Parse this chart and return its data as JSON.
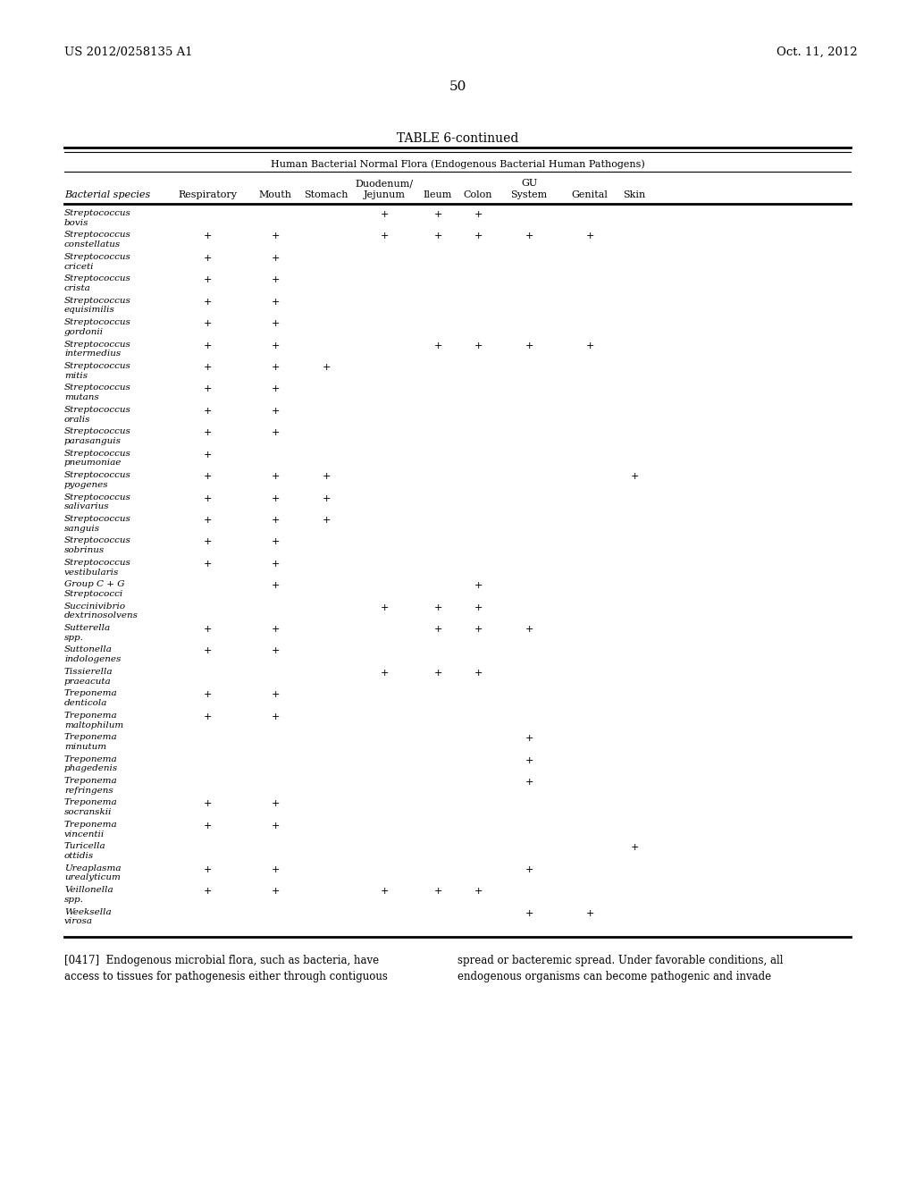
{
  "header_left": "US 2012/0258135 A1",
  "header_right": "Oct. 11, 2012",
  "page_number": "50",
  "table_title": "TABLE 6-continued",
  "subtitle": "Human Bacterial Normal Flora (Endogenous Bacterial Human Pathogens)",
  "col_headers_row2": [
    "Bacterial species",
    "Respiratory",
    "Mouth",
    "Stomach",
    "Jejunum",
    "Ileum",
    "Colon",
    "System",
    "Genital",
    "Skin"
  ],
  "rows": [
    [
      "Streptococcus\nbovis",
      "",
      "",
      "",
      "+",
      "+",
      "+",
      "",
      "",
      ""
    ],
    [
      "Streptococcus\nconstellatus",
      "+",
      "+",
      "",
      "+",
      "+",
      "+",
      "+",
      "+",
      ""
    ],
    [
      "Streptococcus\ncriceti",
      "+",
      "+",
      "",
      "",
      "",
      "",
      "",
      "",
      ""
    ],
    [
      "Streptococcus\ncrista",
      "+",
      "+",
      "",
      "",
      "",
      "",
      "",
      "",
      ""
    ],
    [
      "Streptococcus\nequisimilis",
      "+",
      "+",
      "",
      "",
      "",
      "",
      "",
      "",
      ""
    ],
    [
      "Streptococcus\ngordonii",
      "+",
      "+",
      "",
      "",
      "",
      "",
      "",
      "",
      ""
    ],
    [
      "Streptococcus\nintermedius",
      "+",
      "+",
      "",
      "",
      "+",
      "+",
      "+",
      "+",
      ""
    ],
    [
      "Streptococcus\nmitis",
      "+",
      "+",
      "+",
      "",
      "",
      "",
      "",
      "",
      ""
    ],
    [
      "Streptococcus\nmutans",
      "+",
      "+",
      "",
      "",
      "",
      "",
      "",
      "",
      ""
    ],
    [
      "Streptococcus\noralis",
      "+",
      "+",
      "",
      "",
      "",
      "",
      "",
      "",
      ""
    ],
    [
      "Streptococcus\nparasanguis",
      "+",
      "+",
      "",
      "",
      "",
      "",
      "",
      "",
      ""
    ],
    [
      "Streptococcus\npneumoniae",
      "+",
      "",
      "",
      "",
      "",
      "",
      "",
      "",
      ""
    ],
    [
      "Streptococcus\npyogenes",
      "+",
      "+",
      "+",
      "",
      "",
      "",
      "",
      "",
      "+"
    ],
    [
      "Streptococcus\nsalivarius",
      "+",
      "+",
      "+",
      "",
      "",
      "",
      "",
      "",
      ""
    ],
    [
      "Streptococcus\nsanguis",
      "+",
      "+",
      "+",
      "",
      "",
      "",
      "",
      "",
      ""
    ],
    [
      "Streptococcus\nsobrinus",
      "+",
      "+",
      "",
      "",
      "",
      "",
      "",
      "",
      ""
    ],
    [
      "Streptococcus\nvestibularis",
      "+",
      "+",
      "",
      "",
      "",
      "",
      "",
      "",
      ""
    ],
    [
      "Group C + G\nStreptococci",
      "",
      "+",
      "",
      "",
      "",
      "+",
      "",
      "",
      ""
    ],
    [
      "Succinivibrio\ndextrinosolvens",
      "",
      "",
      "",
      "+",
      "+",
      "+",
      "",
      "",
      ""
    ],
    [
      "Sutterella\nspp.",
      "+",
      "+",
      "",
      "",
      "+",
      "+",
      "+",
      "",
      ""
    ],
    [
      "Suttonella\nindologenes",
      "+",
      "+",
      "",
      "",
      "",
      "",
      "",
      "",
      ""
    ],
    [
      "Tissierella\npraeacuta",
      "",
      "",
      "",
      "+",
      "+",
      "+",
      "",
      "",
      ""
    ],
    [
      "Treponema\ndenticola",
      "+",
      "+",
      "",
      "",
      "",
      "",
      "",
      "",
      ""
    ],
    [
      "Treponema\nmaltophilum",
      "+",
      "+",
      "",
      "",
      "",
      "",
      "",
      "",
      ""
    ],
    [
      "Treponema\nminutum",
      "",
      "",
      "",
      "",
      "",
      "",
      "+",
      "",
      ""
    ],
    [
      "Treponema\nphagedenis",
      "",
      "",
      "",
      "",
      "",
      "",
      "+",
      "",
      ""
    ],
    [
      "Treponema\nrefringens",
      "",
      "",
      "",
      "",
      "",
      "",
      "+",
      "",
      ""
    ],
    [
      "Treponema\nsocranskii",
      "+",
      "+",
      "",
      "",
      "",
      "",
      "",
      "",
      ""
    ],
    [
      "Treponema\nvincentii",
      "+",
      "+",
      "",
      "",
      "",
      "",
      "",
      "",
      ""
    ],
    [
      "Turicella\nottidis",
      "",
      "",
      "",
      "",
      "",
      "",
      "",
      "",
      "+"
    ],
    [
      "Ureaplasma\nurealyticum",
      "+",
      "+",
      "",
      "",
      "",
      "",
      "+",
      "",
      ""
    ],
    [
      "Veillonella\nspp.",
      "+",
      "+",
      "",
      "+",
      "+",
      "+",
      "",
      "",
      ""
    ],
    [
      "Weeksella\nvirosa",
      "",
      "",
      "",
      "",
      "",
      "",
      "+",
      "+",
      ""
    ]
  ],
  "footer_left": "[0417]  Endogenous microbial flora, such as bacteria, have\naccess to tissues for pathogenesis either through contiguous",
  "footer_right": "spread or bacteremic spread. Under favorable conditions, all\nendogenous organisms can become pathogenic and invade"
}
